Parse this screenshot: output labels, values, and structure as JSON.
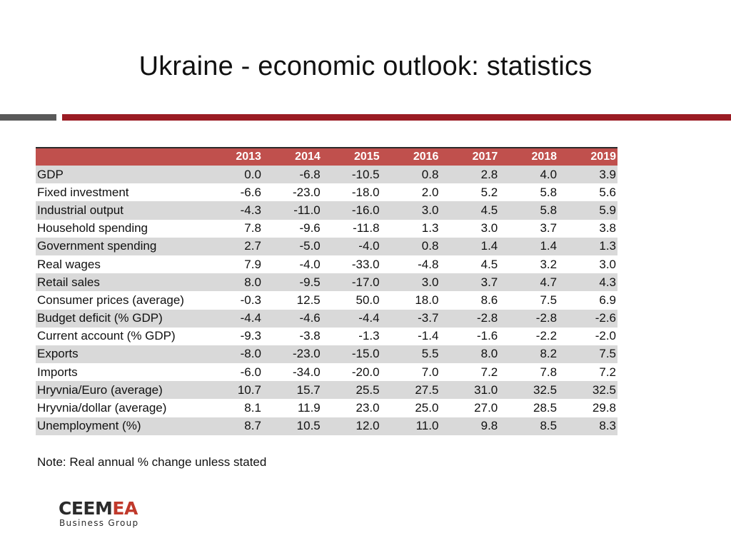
{
  "slide": {
    "title": "Ukraine - economic outlook: statistics",
    "note": "Note: Real annual % change unless stated"
  },
  "logo": {
    "wordmark_dark": "CEEM",
    "wordmark_accent": "EA",
    "tagline": "Business Group"
  },
  "colors": {
    "accent_red": "#9b1c24",
    "header_red": "#c0504d",
    "rule_gray": "#595959",
    "row_shade": "#d9d9d9"
  },
  "table": {
    "corner": "",
    "years": [
      "2013",
      "2014",
      "2015",
      "2016",
      "2017",
      "2018",
      "2019"
    ],
    "rows": [
      {
        "label": "GDP",
        "values": [
          "0.0",
          "-6.8",
          "-10.5",
          "0.8",
          "2.8",
          "4.0",
          "3.9"
        ]
      },
      {
        "label": "Fixed investment",
        "values": [
          "-6.6",
          "-23.0",
          "-18.0",
          "2.0",
          "5.2",
          "5.8",
          "5.6"
        ]
      },
      {
        "label": "Industrial output",
        "values": [
          "-4.3",
          "-11.0",
          "-16.0",
          "3.0",
          "4.5",
          "5.8",
          "5.9"
        ]
      },
      {
        "label": "Household spending",
        "values": [
          "7.8",
          "-9.6",
          "-11.8",
          "1.3",
          "3.0",
          "3.7",
          "3.8"
        ]
      },
      {
        "label": "Government spending",
        "values": [
          "2.7",
          "-5.0",
          "-4.0",
          "0.8",
          "1.4",
          "1.4",
          "1.3"
        ]
      },
      {
        "label": "Real wages",
        "values": [
          "7.9",
          "-4.0",
          "-33.0",
          "-4.8",
          "4.5",
          "3.2",
          "3.0"
        ]
      },
      {
        "label": "Retail sales",
        "values": [
          "8.0",
          "-9.5",
          "-17.0",
          "3.0",
          "3.7",
          "4.7",
          "4.3"
        ]
      },
      {
        "label": "Consumer prices (average)",
        "values": [
          "-0.3",
          "12.5",
          "50.0",
          "18.0",
          "8.6",
          "7.5",
          "6.9"
        ]
      },
      {
        "label": "Budget deficit (% GDP)",
        "values": [
          "-4.4",
          "-4.6",
          "-4.4",
          "-3.7",
          "-2.8",
          "-2.8",
          "-2.6"
        ]
      },
      {
        "label": "Current account (% GDP)",
        "values": [
          "-9.3",
          "-3.8",
          "-1.3",
          "-1.4",
          "-1.6",
          "-2.2",
          "-2.0"
        ]
      },
      {
        "label": "Exports",
        "values": [
          "-8.0",
          "-23.0",
          "-15.0",
          "5.5",
          "8.0",
          "8.2",
          "7.5"
        ]
      },
      {
        "label": "Imports",
        "values": [
          "-6.0",
          "-34.0",
          "-20.0",
          "7.0",
          "7.2",
          "7.8",
          "7.2"
        ]
      },
      {
        "label": "Hryvnia/Euro (average)",
        "values": [
          "10.7",
          "15.7",
          "25.5",
          "27.5",
          "31.0",
          "32.5",
          "32.5"
        ]
      },
      {
        "label": "Hryvnia/dollar (average)",
        "values": [
          "8.1",
          "11.9",
          "23.0",
          "25.0",
          "27.0",
          "28.5",
          "29.8"
        ]
      },
      {
        "label": "Unemployment (%)",
        "values": [
          "8.7",
          "10.5",
          "12.0",
          "11.0",
          "9.8",
          "8.5",
          "8.3"
        ]
      }
    ]
  }
}
